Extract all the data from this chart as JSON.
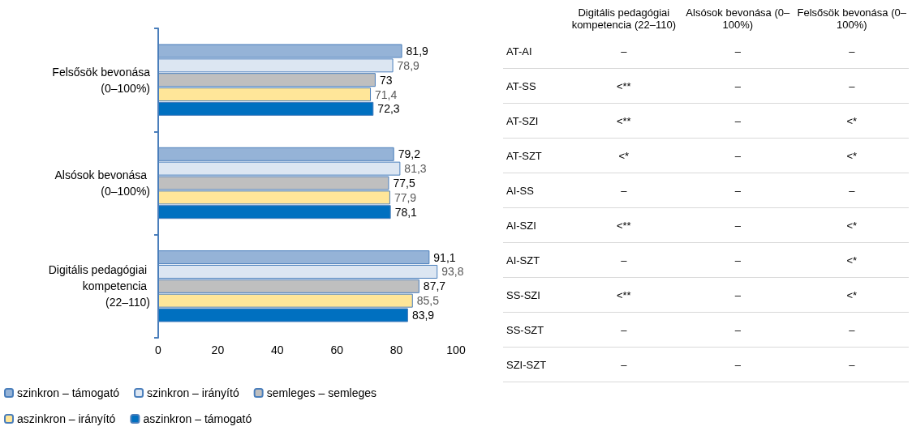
{
  "chart_data": [
    {
      "type": "bar",
      "orientation": "horizontal",
      "categories": [
        "Felsősök bevonása (0–100%)",
        "Alsósok bevonása (0–100%)",
        "Digitális pedagógiai kompetencia (22–110)"
      ],
      "series": [
        {
          "name": "szinkron – támogató",
          "color": "#95b3d7",
          "values": [
            81.9,
            79.2,
            91.1
          ],
          "value_labels": [
            "81,9",
            "79,2",
            "91,1"
          ]
        },
        {
          "name": "szinkron – irányító",
          "color": "#dce6f2",
          "values": [
            78.9,
            81.3,
            93.8
          ],
          "value_labels": [
            "78,9",
            "81,3",
            "93,8"
          ]
        },
        {
          "name": "semleges – semleges",
          "color": "#bfbfbf",
          "values": [
            73,
            77.5,
            87.7
          ],
          "value_labels": [
            "73",
            "77,5",
            "87,7"
          ]
        },
        {
          "name": "aszinkron – irányító",
          "color": "#ffe699",
          "values": [
            71.4,
            77.9,
            85.5
          ],
          "value_labels": [
            "71,4",
            "77,9",
            "85,5"
          ]
        },
        {
          "name": "aszinkron – támogató",
          "color": "#0070c0",
          "values": [
            72.3,
            78.1,
            83.9
          ],
          "value_labels": [
            "72,3",
            "78,1",
            "83,9"
          ]
        }
      ],
      "xlim": [
        0,
        100
      ],
      "xticks": [
        0,
        20,
        40,
        60,
        80,
        100
      ],
      "grid": false,
      "legend": "bottom"
    },
    {
      "type": "other",
      "categories": [
        "Digitális pedagógiai kompetencia (22–110)",
        "Alsósok bevonása (0–100%)",
        "Felsősök bevonása (0–100%)"
      ],
      "y_categories": [
        "AT-AI",
        "AT-SS",
        "AT-SZI",
        "AT-SZT",
        "AI-SS",
        "AI-SZI",
        "AI-SZT",
        "SS-SZI",
        "SS-SZT",
        "SZI-SZT"
      ],
      "cell_labels": [
        [
          "–",
          "–",
          "–"
        ],
        [
          "<**",
          "–",
          "–"
        ],
        [
          "<**",
          "–",
          "<*"
        ],
        [
          "<*",
          "–",
          "<*"
        ],
        [
          "–",
          "–",
          "–"
        ],
        [
          "<**",
          "–",
          "<*"
        ],
        [
          "–",
          "–",
          "<*"
        ],
        [
          "<**",
          "–",
          "<*"
        ],
        [
          "–",
          "–",
          "–"
        ],
        [
          "–",
          "–",
          "–"
        ]
      ]
    }
  ]
}
